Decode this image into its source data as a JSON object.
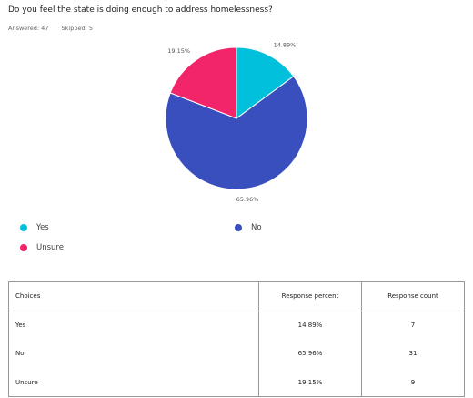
{
  "question": "Do you feel the state is doing enough to address homelessness?",
  "answered_label": "Answered: 47",
  "skipped_label": "Skipped: 5",
  "chart_data": {
    "type": "pie",
    "slices": [
      {
        "label": "Yes",
        "value": 14.89,
        "display": "14.89%",
        "color": "#00c0dc"
      },
      {
        "label": "No",
        "value": 65.96,
        "display": "65.96%",
        "color": "#3a4fbe"
      },
      {
        "label": "Unsure",
        "value": 19.15,
        "display": "19.15%",
        "color": "#f2246a"
      }
    ],
    "legend_placement": "bottom"
  },
  "table": {
    "headers": [
      "Choices",
      "Response percent",
      "Response count"
    ],
    "rows": [
      {
        "choice": "Yes",
        "percent": "14.89%",
        "count": "7"
      },
      {
        "choice": "No",
        "percent": "65.96%",
        "count": "31"
      },
      {
        "choice": "Unsure",
        "percent": "19.15%",
        "count": "9"
      }
    ]
  }
}
